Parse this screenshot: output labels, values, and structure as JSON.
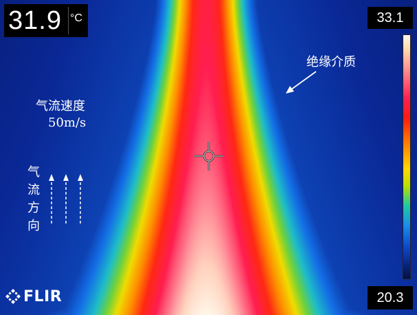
{
  "measurement": {
    "value": "31.9",
    "unit": "°C"
  },
  "scale": {
    "max": "33.1",
    "min": "20.3"
  },
  "annotations": {
    "velocity_label": "气流速度",
    "velocity_value": "50m/s",
    "insulation_label": "绝缘介质",
    "flow_direction_label": "气流方向"
  },
  "logo": {
    "text": "FLIR"
  },
  "icons": {
    "crosshair": "crosshair-spot-icon",
    "logo_mark": "flir-logo-icon",
    "arrows": "flow-direction-arrow-icon"
  },
  "palette": {
    "background_cold": "#041a70",
    "mid": "#ffd800",
    "hot": "#ff1a40",
    "core": "#fff2e0"
  }
}
